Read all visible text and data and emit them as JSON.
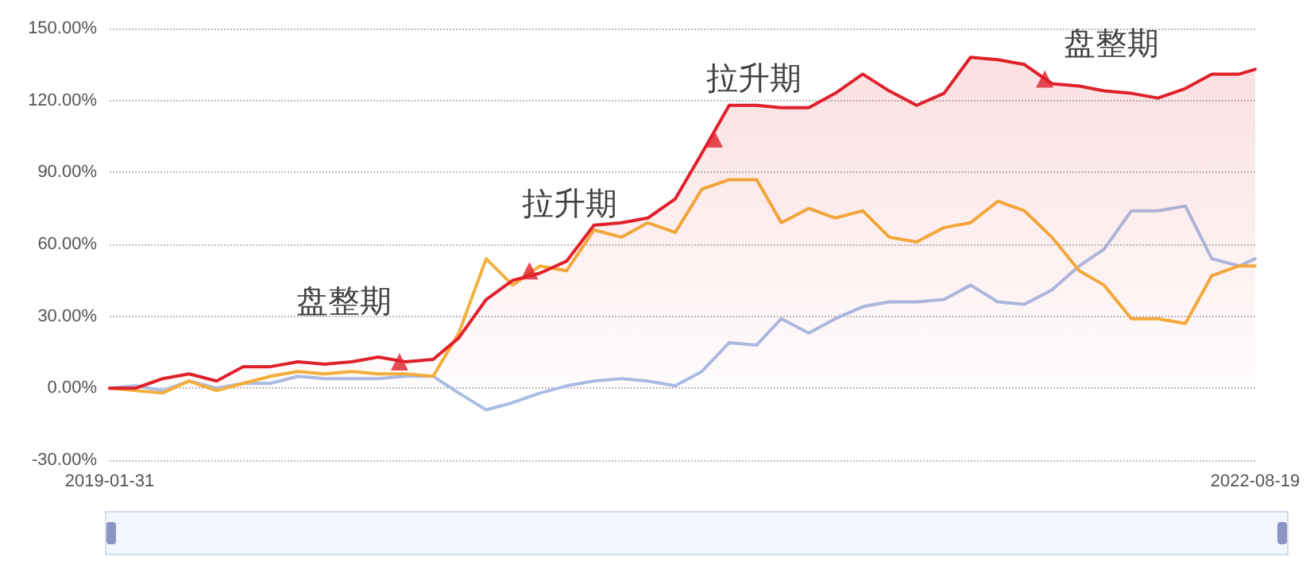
{
  "chart_data": {
    "type": "line",
    "x": [
      "2019-01-31",
      "2019-03",
      "2019-04",
      "2019-05",
      "2019-06",
      "2019-07",
      "2019-08",
      "2019-09",
      "2019-10",
      "2019-11",
      "2019-12",
      "2020-01",
      "2020-02",
      "2020-03",
      "2020-04",
      "2020-05",
      "2020-06",
      "2020-07",
      "2020-08",
      "2020-09",
      "2020-10",
      "2020-11",
      "2020-12",
      "2021-01",
      "2021-02",
      "2021-03",
      "2021-04",
      "2021-05",
      "2021-06",
      "2021-07",
      "2021-08",
      "2021-09",
      "2021-10",
      "2021-11",
      "2021-12",
      "2022-01",
      "2022-02",
      "2022-03",
      "2022-04",
      "2022-05",
      "2022-06",
      "2022-07",
      "2022-08",
      "2022-08-19"
    ],
    "series": [
      {
        "color": "#a9bde6",
        "values": [
          0,
          1,
          -1,
          3,
          0,
          2,
          2,
          5,
          4,
          4,
          4,
          5,
          5,
          -2,
          -9,
          -6,
          -2,
          1,
          3,
          4,
          3,
          1,
          7,
          19,
          18,
          29,
          23,
          29,
          34,
          36,
          36,
          37,
          43,
          36,
          35,
          41,
          51,
          58,
          74,
          74,
          76,
          54,
          51,
          54
        ]
      },
      {
        "color": "#f5b03b",
        "values": [
          0,
          -1,
          -2,
          3,
          -1,
          2,
          5,
          7,
          6,
          7,
          6,
          6,
          5,
          23,
          54,
          43,
          51,
          49,
          66,
          63,
          69,
          65,
          83,
          87,
          87,
          69,
          75,
          71,
          74,
          63,
          61,
          67,
          69,
          78,
          74,
          63,
          49,
          43,
          29,
          29,
          27,
          47,
          51,
          51
        ]
      },
      {
        "type": "area",
        "color": "#e0202a",
        "values": [
          0,
          0,
          4,
          6,
          3,
          9,
          9,
          11,
          10,
          11,
          13,
          11,
          12,
          21,
          37,
          45,
          48,
          53,
          68,
          69,
          71,
          79,
          98,
          118,
          118,
          117,
          117,
          123,
          131,
          124,
          118,
          123,
          138,
          137,
          135,
          127,
          126,
          124,
          123,
          121,
          125,
          131,
          131,
          133
        ]
      }
    ],
    "annotations": [
      {
        "text": "盘整期",
        "x": "2019-12-25",
        "y": 11
      },
      {
        "text": "拉升期",
        "x": "2020-05-20",
        "y": 49
      },
      {
        "text": "拉升期",
        "x": "2020-12-15",
        "y": 104
      },
      {
        "text": "盘整期",
        "x": "2021-12-24",
        "y": 129
      }
    ],
    "xlim": [
      "2019-01-31",
      "2022-08-19"
    ],
    "xticks": [
      "2019-01-31",
      "2022-08-19"
    ],
    "ylim": [
      -30,
      150
    ],
    "yticks": [
      {
        "value": -30,
        "label": "-30.00%"
      },
      {
        "value": 0,
        "label": "0.00%"
      },
      {
        "value": 30,
        "label": "30.00%"
      },
      {
        "value": 60,
        "label": "60.00%"
      },
      {
        "value": 90,
        "label": "90.00%"
      },
      {
        "value": 120,
        "label": "120.00%"
      },
      {
        "value": 150,
        "label": "150.00%"
      }
    ],
    "grid": "y",
    "marker": "none",
    "line_style": "solid"
  }
}
